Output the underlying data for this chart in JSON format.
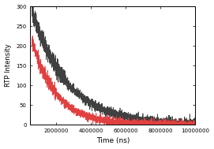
{
  "title": "",
  "xlabel": "Time (ns)",
  "ylabel": "RTP Intensity",
  "xlim": [
    500000,
    10000000
  ],
  "ylim": [
    0,
    300
  ],
  "yticks": [
    0,
    50,
    100,
    150,
    200,
    250,
    300
  ],
  "xticks": [
    2000000,
    4000000,
    6000000,
    8000000,
    10000000
  ],
  "xtick_labels": [
    "2000000",
    "4000000",
    "6000000",
    "8000000",
    "10000000"
  ],
  "black_color": "#404040",
  "red_color": "#e04040",
  "background_color": "#ffffff",
  "seed": 42,
  "x_start": 600000,
  "x_end": 10000000,
  "n_points": 3000,
  "black_amplitude": 290,
  "black_tau": 2000000,
  "red_amplitude": 213,
  "red_tau": 1400000,
  "noise_level": 6,
  "xlabel_fontsize": 6.5,
  "ylabel_fontsize": 6.0,
  "tick_fontsize": 5.0
}
